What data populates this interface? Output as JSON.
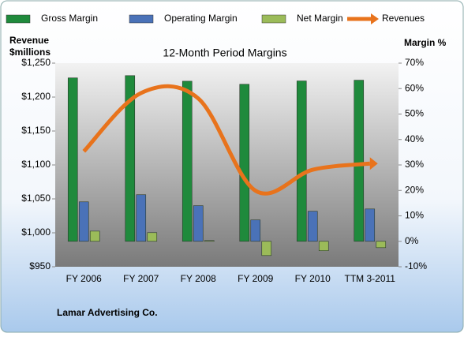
{
  "chart_data": {
    "type": "bar",
    "title": "12-Month Period Margins",
    "ylabel": [
      "Revenue",
      "$millions"
    ],
    "y2label": "Margin %",
    "footer": "Lamar Advertising Co.",
    "categories": [
      "FY 2006",
      "FY 2007",
      "FY 2008",
      "FY 2009",
      "FY 2010",
      "TTM 3-2011"
    ],
    "series": [
      {
        "name": "Gross Margin",
        "type": "bar",
        "axis": "y2",
        "color": "#1f8a3c",
        "values": [
          64.2,
          65.1,
          62.9,
          61.7,
          63,
          63.3
        ]
      },
      {
        "name": "Operating Margin",
        "type": "bar",
        "axis": "y2",
        "color": "#4a72b8",
        "values": [
          15.5,
          18.3,
          14,
          8.4,
          11.8,
          12.7
        ]
      },
      {
        "name": "Net Margin",
        "type": "bar",
        "axis": "y2",
        "color": "#9bbb59",
        "values": [
          4,
          3.4,
          0.3,
          -5.6,
          -3.7,
          -2.5
        ]
      },
      {
        "name": "Revenues",
        "type": "line",
        "axis": "y",
        "color": "#e8731c",
        "values": [
          1120,
          1206,
          1198,
          1062,
          1093,
          1102
        ]
      }
    ],
    "ylim": [
      950,
      1250
    ],
    "yticks": [
      {
        "value": 950,
        "label": "$950"
      },
      {
        "value": 1000,
        "label": "$1,000"
      },
      {
        "value": 1050,
        "label": "$1,050"
      },
      {
        "value": 1100,
        "label": "$1,100"
      },
      {
        "value": 1150,
        "label": "$1,150"
      },
      {
        "value": 1200,
        "label": "$1,200"
      },
      {
        "value": 1250,
        "label": "$1,250"
      }
    ],
    "y2lim": [
      -10,
      70
    ],
    "y2ticks": [
      {
        "value": -10,
        "label": "-10%"
      },
      {
        "value": 0,
        "label": "0%"
      },
      {
        "value": 10,
        "label": "10%"
      },
      {
        "value": 20,
        "label": "20%"
      },
      {
        "value": 30,
        "label": "30%"
      },
      {
        "value": 40,
        "label": "40%"
      },
      {
        "value": 50,
        "label": "50%"
      },
      {
        "value": 60,
        "label": "60%"
      },
      {
        "value": 70,
        "label": "70%"
      }
    ],
    "legend": "top"
  }
}
